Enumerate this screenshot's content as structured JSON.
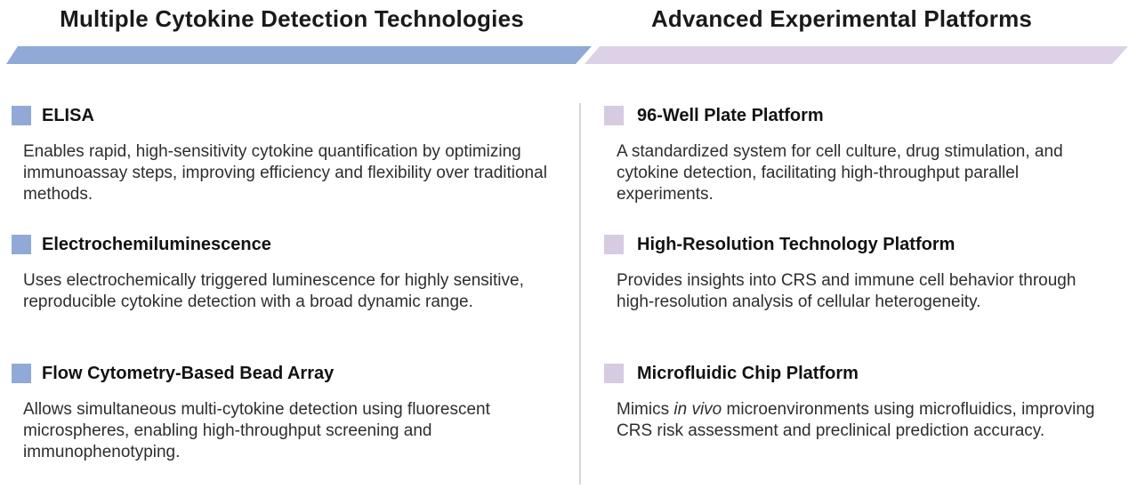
{
  "colors": {
    "accent_blue": "#90a9d7",
    "accent_purple": "#d6cbe3",
    "banner_purple": "#dcd1e7",
    "divider": "#d6d6d6",
    "title_text": "#1a1a1a",
    "body_text": "#2e2e2e"
  },
  "left_section": {
    "title": "Multiple Cytokine Detection Technologies",
    "items": [
      {
        "title": "ELISA",
        "desc": "Enables rapid, high-sensitivity cytokine quantification by optimizing immunoassay steps, improving efficiency and flexibility over traditional methods."
      },
      {
        "title": "Electrochemiluminescence",
        "desc": "Uses electrochemically triggered luminescence for highly sensitive, reproducible cytokine detection with a broad dynamic range."
      },
      {
        "title": "Flow Cytometry-Based Bead Array",
        "desc": "Allows simultaneous multi-cytokine detection using fluorescent microspheres, enabling high-throughput screening and immunophenotyping."
      }
    ]
  },
  "right_section": {
    "title": "Advanced Experimental Platforms",
    "items": [
      {
        "title": "96-Well Plate Platform",
        "desc": "A standardized system for cell culture, drug stimulation, and cytokine detection, facilitating high-throughput parallel experiments."
      },
      {
        "title": "High-Resolution Technology Platform",
        "desc": "Provides insights into CRS and immune cell behavior through high-resolution analysis of cellular heterogeneity."
      },
      {
        "title": "Microfluidic Chip Platform",
        "desc_prefix": "Mimics ",
        "desc_italic": "in vivo",
        "desc_rest": " microenvironments using microfluidics, improving CRS risk assessment and preclinical prediction accuracy."
      }
    ]
  }
}
